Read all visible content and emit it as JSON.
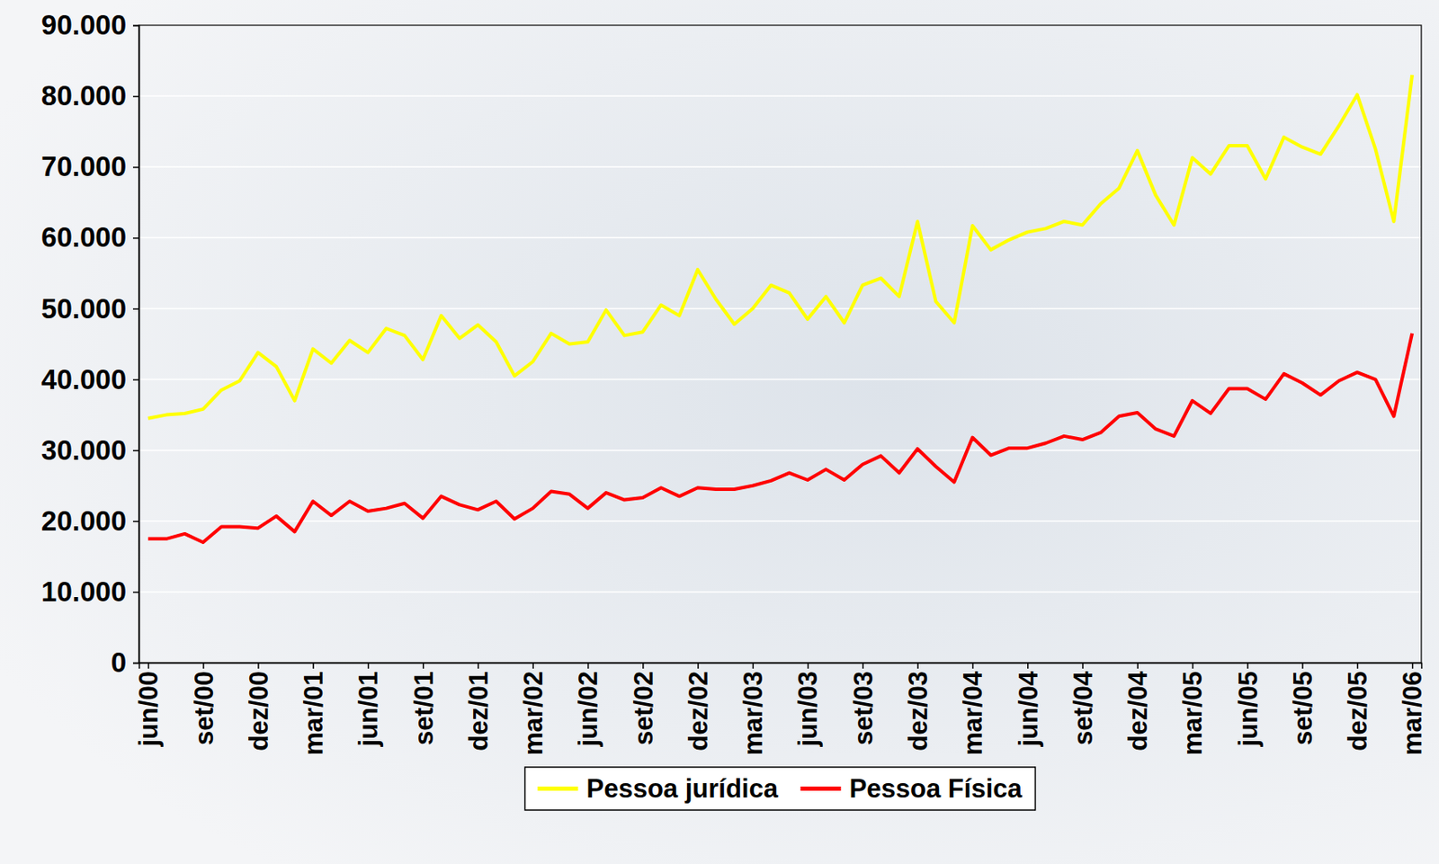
{
  "chart_data": {
    "type": "line",
    "categories": [
      "jun/00",
      null,
      null,
      "set/00",
      null,
      null,
      "dez/00",
      null,
      null,
      "mar/01",
      null,
      null,
      "jun/01",
      null,
      null,
      "set/01",
      null,
      null,
      "dez/01",
      null,
      null,
      "mar/02",
      null,
      null,
      "jun/02",
      null,
      null,
      "set/02",
      null,
      null,
      "dez/02",
      null,
      null,
      "mar/03",
      null,
      null,
      "jun/03",
      null,
      null,
      "set/03",
      null,
      null,
      "dez/03",
      null,
      null,
      "mar/04",
      null,
      null,
      "jun/04",
      null,
      null,
      "set/04",
      null,
      null,
      "dez/04",
      null,
      null,
      "mar/05",
      null,
      null,
      "jun/05",
      null,
      null,
      "set/05",
      null,
      null,
      "dez/05",
      null,
      null,
      "mar/06"
    ],
    "series": [
      {
        "name": "Pessoa jurídica",
        "color": "#ffff00",
        "values": [
          34500,
          35000,
          35200,
          35800,
          38500,
          39800,
          43800,
          41800,
          37000,
          44300,
          42300,
          45500,
          43800,
          47200,
          46200,
          42800,
          49000,
          45800,
          47700,
          45300,
          40500,
          42500,
          46500,
          45000,
          45300,
          49800,
          46200,
          46700,
          50500,
          49000,
          55500,
          51300,
          47800,
          50000,
          53300,
          52200,
          48500,
          51700,
          48000,
          53300,
          54300,
          51700,
          62300,
          51000,
          48000,
          61700,
          58300,
          59700,
          60800,
          61300,
          62300,
          61800,
          64800,
          67000,
          72300,
          66000,
          61800,
          71300,
          69000,
          73000,
          73000,
          68300,
          74200,
          72800,
          71800,
          75800,
          80200,
          72500,
          62300,
          83000
        ]
      },
      {
        "name": "Pessoa Física",
        "color": "#ff0000",
        "values": [
          17500,
          17500,
          18200,
          17000,
          19200,
          19200,
          19000,
          20700,
          18500,
          22800,
          20800,
          22800,
          21400,
          21800,
          22500,
          20400,
          23500,
          22300,
          21600,
          22800,
          20300,
          21800,
          24200,
          23800,
          21800,
          24000,
          23000,
          23300,
          24700,
          23500,
          24700,
          24500,
          24500,
          25000,
          25700,
          26800,
          25800,
          27300,
          25800,
          28000,
          29200,
          26800,
          30200,
          27700,
          25500,
          31800,
          29300,
          30300,
          30300,
          31000,
          32000,
          31500,
          32500,
          34800,
          35300,
          33000,
          32000,
          37000,
          35200,
          38700,
          38700,
          37200,
          40800,
          39500,
          37800,
          39800,
          41000,
          40000,
          34800,
          46500
        ]
      }
    ],
    "ylim": [
      0,
      90000
    ],
    "yticks": [
      0,
      {
        "value": 10000,
        "label": "10.000"
      },
      {
        "value": 20000,
        "label": "20.000"
      },
      {
        "value": 30000,
        "label": "30.000"
      },
      {
        "value": 40000,
        "label": "40.000"
      },
      {
        "value": 50000,
        "label": "50.000"
      },
      {
        "value": 60000,
        "label": "60.000"
      },
      {
        "value": 70000,
        "label": "70.000"
      },
      {
        "value": 80000,
        "label": "80.000"
      },
      {
        "value": 90000,
        "label": "90.000"
      }
    ],
    "grid": true,
    "legend": "bottom"
  }
}
